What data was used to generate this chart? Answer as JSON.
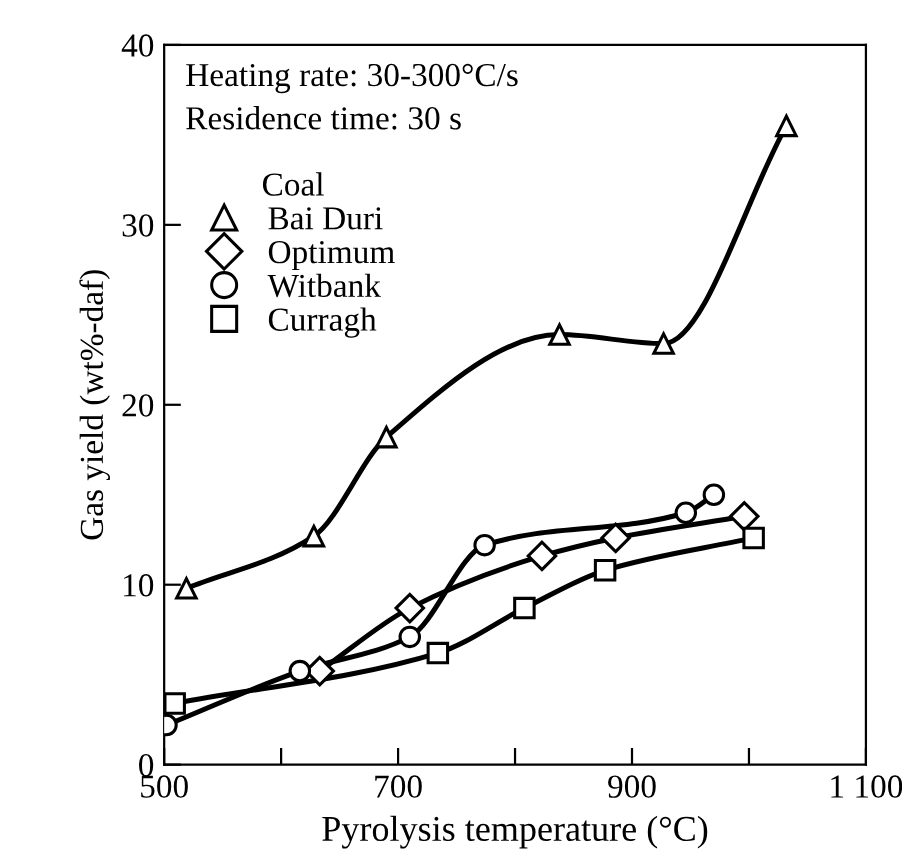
{
  "chart_data": {
    "type": "line",
    "xlabel": "Pyrolysis temperature (°C)",
    "ylabel": "Gas yield (wt%-daf)",
    "legend_title": "Coal",
    "legend": "top left",
    "grid": false,
    "annotations": [
      "Heating rate: 30-300°C/s",
      "Residence time: 30 s"
    ],
    "xlim": [
      500,
      1100
    ],
    "ylim": [
      0,
      40
    ],
    "xticks": [
      500,
      {
        "value": 600,
        "label": null
      },
      700,
      {
        "value": 800,
        "label": null
      },
      900,
      {
        "value": 1000,
        "label": null
      },
      {
        "value": 1100,
        "label": "1 100"
      }
    ],
    "yticks": [
      0,
      10,
      20,
      30,
      40
    ],
    "series": [
      {
        "name": "Bai Duri",
        "color": "#000000",
        "marker": "triangle",
        "x": [
          519,
          628,
          690,
          838,
          927,
          1032
        ],
        "values": [
          9.8,
          12.7,
          18.2,
          23.9,
          23.4,
          35.5
        ]
      },
      {
        "name": "Optimum",
        "color": "#000000",
        "marker": "diamond",
        "x": [
          633,
          710,
          823,
          886,
          996
        ],
        "values": [
          5.2,
          8.7,
          11.6,
          12.6,
          13.8
        ]
      },
      {
        "name": "Witbank",
        "color": "#000000",
        "marker": "circle",
        "x": [
          502,
          616,
          710,
          774,
          946,
          970
        ],
        "values": [
          2.2,
          5.2,
          7.1,
          12.2,
          14.0,
          15.0
        ]
      },
      {
        "name": "Curragh",
        "color": "#000000",
        "marker": "square",
        "x": [
          509,
          734,
          808,
          877,
          1004
        ],
        "values": [
          3.4,
          6.2,
          8.7,
          10.8,
          12.6
        ]
      }
    ]
  }
}
